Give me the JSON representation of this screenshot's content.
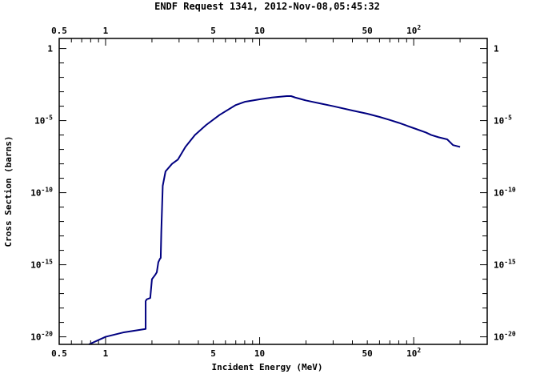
{
  "chart_data": {
    "type": "line",
    "title": "ENDF Request 1341, 2012-Nov-08,05:45:32",
    "xlabel": "Incident Energy (MeV)",
    "ylabel": "Cross Section (barns)",
    "xscale": "log",
    "yscale": "log",
    "xlim": [
      0.5,
      300
    ],
    "ylim": [
      3e-21,
      5
    ],
    "grid": false,
    "legend": "none",
    "line_color": "#000080",
    "x_tick_labels": [
      {
        "value": 0.5,
        "label": "0.5"
      },
      {
        "value": 1,
        "label": "1"
      },
      {
        "value": 5,
        "label": "5"
      },
      {
        "value": 10,
        "label": "10"
      },
      {
        "value": 50,
        "label": "50"
      },
      {
        "value": 100,
        "label": "10",
        "exp": "2"
      }
    ],
    "y_tick_labels": [
      {
        "value": 1,
        "base": "1",
        "exp": ""
      },
      {
        "value": 1e-05,
        "base": "10",
        "exp": "-5"
      },
      {
        "value": 1e-10,
        "base": "10",
        "exp": "-10"
      },
      {
        "value": 1e-15,
        "base": "10",
        "exp": "-15"
      },
      {
        "value": 1e-20,
        "base": "10",
        "exp": "-20"
      }
    ],
    "series": [
      {
        "x": [
          0.78,
          1.0,
          1.3,
          1.82,
          1.82,
          1.85,
          1.95,
          2.0,
          2.1,
          2.15,
          2.2,
          2.25,
          2.28,
          2.3,
          2.35,
          2.45,
          2.7,
          2.95,
          3.3,
          3.8,
          4.5,
          5.5,
          7.0,
          8.0,
          10.0,
          12.0,
          15.0,
          16.0,
          17.0,
          20.0,
          25.0,
          30.0,
          40.0,
          50.0,
          60.0,
          70.0,
          80.0,
          100.0,
          120.0,
          130.0,
          145.0,
          165.0,
          180.0,
          200.0
        ],
        "y": [
          3e-21,
          1e-20,
          2e-20,
          3.5e-20,
          3e-18,
          4e-18,
          5e-18,
          1e-16,
          2e-16,
          3e-16,
          1.5e-15,
          2.5e-15,
          3e-15,
          2e-13,
          3e-10,
          3e-09,
          1e-08,
          2e-08,
          1.5e-07,
          1e-06,
          5e-06,
          2.5e-05,
          0.00012,
          0.0002,
          0.0003,
          0.0004,
          0.0005,
          0.0005,
          0.0004,
          0.00025,
          0.00015,
          0.0001,
          5e-05,
          3e-05,
          1.8e-05,
          1.1e-05,
          7e-06,
          3e-06,
          1.5e-06,
          1e-06,
          7e-07,
          5e-07,
          2e-07,
          1.5e-07
        ]
      }
    ]
  }
}
